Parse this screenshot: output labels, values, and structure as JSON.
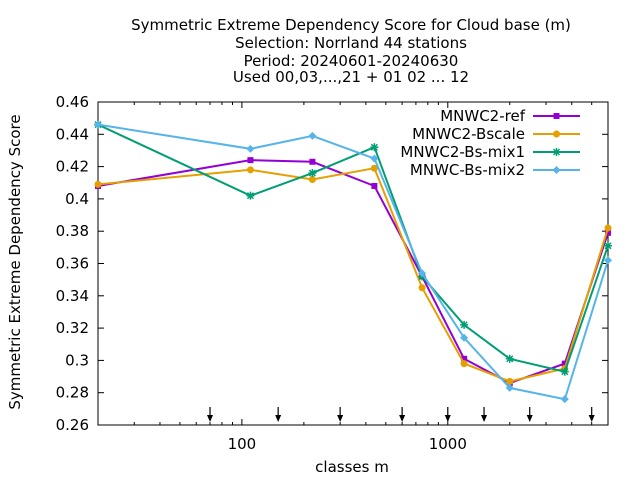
{
  "chart_data": {
    "type": "line",
    "title_lines": [
      "Symmetric Extreme Dependency Score  for Cloud base (m)",
      "Selection: Norrland     44 stations",
      "Period: 20240601-20240630",
      "Used 00,03,...,21 + 01 02 ... 12"
    ],
    "xlabel": "classes m",
    "ylabel": "Symmetric Extreme Dependency Score",
    "xscale": "log",
    "xlim": [
      20,
      6000
    ],
    "ylim": [
      0.26,
      0.46
    ],
    "x_ticks": [
      100,
      1000
    ],
    "x_tick_labels": [
      "100",
      "1000"
    ],
    "y_ticks": [
      0.26,
      0.28,
      0.3,
      0.32,
      0.34,
      0.36,
      0.38,
      0.4,
      0.42,
      0.44,
      0.46
    ],
    "y_tick_labels": [
      "0.26",
      "0.28",
      "0.3",
      "0.32",
      "0.34",
      "0.36",
      "0.38",
      "0.4",
      "0.42",
      "0.44",
      "0.46"
    ],
    "arrow_markers_x": [
      70,
      150,
      300,
      600,
      1000,
      1500,
      2500,
      5000
    ],
    "legend_position": "top-right",
    "grid": false,
    "x": [
      20,
      110,
      220,
      440,
      750,
      1200,
      2000,
      3700,
      6000
    ],
    "series": [
      {
        "name": "MNWC2-ref",
        "color": "#9400d3",
        "marker": "square",
        "values": [
          0.408,
          0.424,
          0.423,
          0.408,
          0.352,
          0.301,
          0.286,
          0.298,
          0.379
        ]
      },
      {
        "name": "MNWC2-Bscale",
        "color": "#e69f00",
        "marker": "circle",
        "values": [
          0.409,
          0.418,
          0.412,
          0.419,
          0.345,
          0.298,
          0.287,
          0.295,
          0.382
        ]
      },
      {
        "name": "MNWC2-Bs-mix1",
        "color": "#009e73",
        "marker": "star",
        "values": [
          0.446,
          0.402,
          0.416,
          0.432,
          0.352,
          0.322,
          0.301,
          0.293,
          0.371
        ]
      },
      {
        "name": "MNWC-Bs-mix2",
        "color": "#56b4e9",
        "marker": "diamond",
        "values": [
          0.446,
          0.431,
          0.439,
          0.425,
          0.354,
          0.314,
          0.283,
          0.276,
          0.362
        ]
      }
    ]
  }
}
